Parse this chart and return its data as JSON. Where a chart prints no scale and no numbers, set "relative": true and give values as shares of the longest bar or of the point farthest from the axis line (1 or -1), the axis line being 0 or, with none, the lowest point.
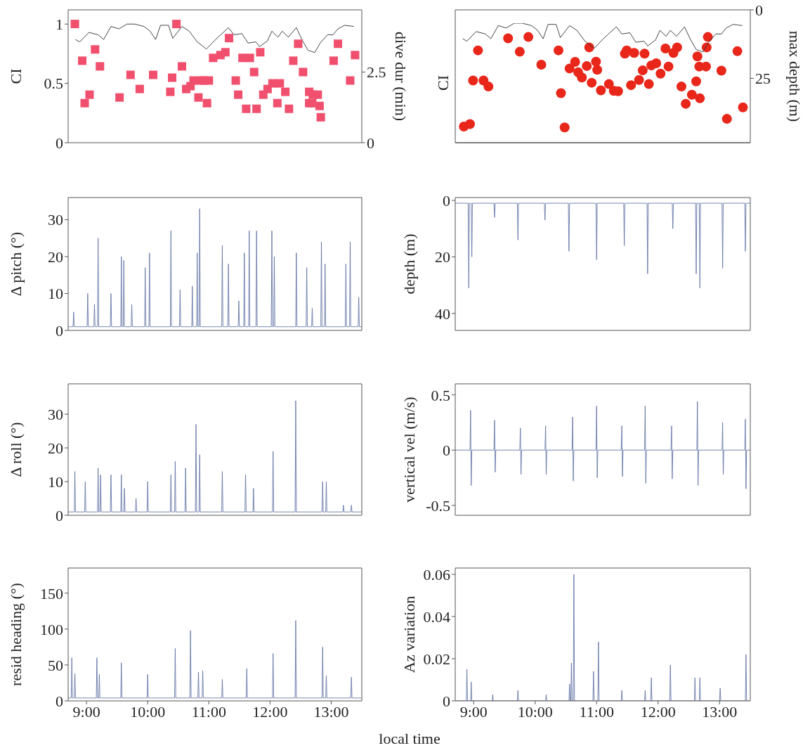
{
  "chart_data": [
    {
      "type": "scatter",
      "ylabel": "CI",
      "y2label": "dive dur (min)",
      "xlim": [
        8.7,
        13.5
      ],
      "xticks": [
        {
          "value": 10,
          "label": null
        },
        {
          "value": 12,
          "label": null
        }
      ],
      "ylim": [
        0,
        1.12
      ],
      "yticks": [
        0,
        0.5,
        1
      ],
      "y2lim": [
        0,
        4.7
      ],
      "y2ticks": [
        0,
        2.5
      ],
      "tick_labels": "y",
      "series": [
        {
          "type": "line",
          "color": "#303030",
          "x": [
            8.82,
            8.89,
            9.04,
            9.19,
            9.28,
            9.4,
            9.53,
            9.66,
            9.79,
            9.94,
            10.04,
            10.13,
            10.21,
            10.34,
            10.41,
            10.47,
            10.56,
            10.68,
            10.81,
            10.96,
            11.11,
            11.32,
            11.41,
            11.54,
            11.64,
            11.77,
            11.83,
            11.96,
            12.03,
            12.13,
            12.2,
            12.3,
            12.43,
            12.52,
            12.62,
            12.73,
            12.82,
            12.94,
            13.03,
            13.11,
            13.22,
            13.37
          ],
          "values": [
            0.87,
            0.85,
            0.93,
            0.91,
            0.87,
            0.98,
            0.96,
            1.0,
            1.0,
            0.98,
            0.94,
            0.87,
            0.99,
            0.99,
            0.88,
            0.92,
            0.98,
            0.94,
            0.85,
            0.79,
            0.87,
            0.97,
            0.91,
            0.92,
            0.84,
            0.85,
            0.81,
            0.86,
            0.94,
            0.89,
            0.94,
            0.89,
            0.97,
            0.87,
            0.78,
            0.76,
            0.84,
            0.91,
            0.91,
            0.96,
            0.99,
            0.98
          ]
        },
        {
          "type": "scatter",
          "axis": "y2",
          "marker": "square",
          "color": "#f0506e",
          "x": [
            8.81,
            8.93,
            8.97,
            9.05,
            9.14,
            9.22,
            9.54,
            9.72,
            9.87,
            10.09,
            10.37,
            10.4,
            10.47,
            10.56,
            10.63,
            10.7,
            10.75,
            10.83,
            10.87,
            10.92,
            10.97,
            11.0,
            11.07,
            11.19,
            11.27,
            11.33,
            11.44,
            11.48,
            11.55,
            11.61,
            11.67,
            11.74,
            11.78,
            11.84,
            11.89,
            11.96,
            12.04,
            12.12,
            12.16,
            12.25,
            12.31,
            12.38,
            12.46,
            12.54,
            12.64,
            12.64,
            12.69,
            12.7,
            12.78,
            12.81,
            12.83,
            13.04,
            13.11,
            13.31,
            13.39
          ],
          "values": [
            4.2,
            2.9,
            1.4,
            1.7,
            3.3,
            2.7,
            1.6,
            2.4,
            1.9,
            2.4,
            1.8,
            2.3,
            4.2,
            2.7,
            1.9,
            2.0,
            2.2,
            1.6,
            2.2,
            2.2,
            1.4,
            2.2,
            3.0,
            3.1,
            3.2,
            3.7,
            2.2,
            1.7,
            3.0,
            1.2,
            3.0,
            2.5,
            1.2,
            3.2,
            1.7,
            1.9,
            2.1,
            1.4,
            2.1,
            1.8,
            1.2,
            2.9,
            3.5,
            2.5,
            1.8,
            1.4,
            1.4,
            1.7,
            1.7,
            1.3,
            0.9,
            2.9,
            3.5,
            2.2,
            3.1
          ]
        }
      ]
    },
    {
      "type": "scatter",
      "y2label": "max depth (m)",
      "xlim": [
        8.7,
        13.5
      ],
      "xticks": [
        {
          "value": 9,
          "label": null
        },
        {
          "value": 11,
          "label": null
        },
        {
          "value": 13,
          "label": null
        }
      ],
      "y2lim": [
        48.5,
        0
      ],
      "y2ticks": [
        0,
        25
      ],
      "tick_labels": "y",
      "series": [
        {
          "type": "scatter",
          "axis": "y2",
          "marker": "circle",
          "color": "#e8261a",
          "x": [
            8.84,
            8.94,
            8.99,
            9.07,
            9.16,
            9.24,
            9.56,
            9.75,
            9.89,
            10.1,
            10.38,
            10.42,
            10.48,
            10.56,
            10.65,
            10.7,
            10.76,
            10.84,
            10.88,
            10.92,
            10.99,
            11.01,
            11.07,
            11.2,
            11.28,
            11.35,
            11.46,
            11.49,
            11.56,
            11.61,
            11.69,
            11.75,
            11.78,
            11.85,
            11.89,
            11.97,
            12.04,
            12.12,
            12.17,
            12.25,
            12.31,
            12.38,
            12.45,
            12.55,
            12.62,
            12.64,
            12.67,
            12.68,
            12.78,
            12.79,
            12.81,
            13.03,
            13.12,
            13.29,
            13.38
          ],
          "values": [
            42.6,
            41.7,
            25.8,
            14.8,
            25.8,
            28.0,
            10.4,
            15.3,
            9.9,
            20.0,
            14.8,
            30.4,
            42.9,
            21.4,
            19.0,
            22.8,
            24.7,
            20.5,
            13.7,
            26.6,
            18.9,
            21.9,
            29.4,
            27.1,
            29.6,
            29.7,
            16.0,
            14.8,
            27.5,
            15.7,
            25.6,
            22.1,
            16.0,
            27.1,
            20.3,
            19.5,
            23.3,
            14.1,
            20.7,
            15.7,
            13.7,
            28.0,
            34.3,
            31.0,
            26.1,
            17.0,
            20.7,
            32.3,
            20.7,
            13.7,
            9.9,
            22.2,
            39.8,
            15.1,
            35.6
          ]
        }
      ]
    },
    {
      "type": "line",
      "relative": true,
      "ylabel": "CI",
      "xlim": [
        8.7,
        13.5
      ],
      "tick_labels": false,
      "series": [
        {
          "color": "#303030",
          "x": [
            8.82,
            8.89,
            9.04,
            9.19,
            9.28,
            9.4,
            9.53,
            9.66,
            9.79,
            9.94,
            10.04,
            10.13,
            10.21,
            10.34,
            10.41,
            10.47,
            10.56,
            10.68,
            10.81,
            10.96,
            11.11,
            11.32,
            11.41,
            11.54,
            11.64,
            11.77,
            11.83,
            11.96,
            12.03,
            12.13,
            12.2,
            12.3,
            12.43,
            12.52,
            12.62,
            12.73,
            12.82,
            12.94,
            13.03,
            13.11,
            13.22,
            13.37
          ],
          "values": [
            0.87,
            0.85,
            0.93,
            0.91,
            0.87,
            0.98,
            0.96,
            1.0,
            1.0,
            0.98,
            0.94,
            0.87,
            0.99,
            0.99,
            0.88,
            0.92,
            0.98,
            0.94,
            0.85,
            0.79,
            0.87,
            0.97,
            0.91,
            0.92,
            0.84,
            0.85,
            0.81,
            0.86,
            0.94,
            0.89,
            0.94,
            0.89,
            0.97,
            0.87,
            0.78,
            0.76,
            0.84,
            0.91,
            0.91,
            0.96,
            0.99,
            0.98
          ]
        }
      ]
    },
    {
      "type": "line",
      "ylabel": "Δ pitch (°)",
      "xlim": [
        8.7,
        13.5
      ],
      "xticks": [
        {
          "value": 10,
          "label": null
        },
        {
          "value": 12,
          "label": null
        }
      ],
      "ylim": [
        0,
        36
      ],
      "yticks": [
        0,
        10,
        20,
        30
      ],
      "tick_labels": "y",
      "series": [
        {
          "color": "#6878a8",
          "x": [
            8.7,
            8.78,
            8.79,
            8.8,
            9.01,
            9.02,
            9.03,
            9.12,
            9.13,
            9.14,
            9.18,
            9.19,
            9.2,
            9.39,
            9.4,
            9.41,
            9.56,
            9.57,
            9.58,
            9.6,
            9.61,
            9.62,
            9.73,
            9.74,
            9.75,
            9.95,
            9.96,
            9.97,
            10.02,
            10.03,
            10.04,
            10.37,
            10.38,
            10.39,
            10.52,
            10.53,
            10.54,
            10.72,
            10.73,
            10.74,
            10.8,
            10.81,
            10.82,
            10.84,
            10.85,
            10.86,
            11.21,
            11.22,
            11.23,
            11.31,
            11.32,
            11.33,
            11.48,
            11.49,
            11.5,
            11.57,
            11.58,
            11.59,
            11.65,
            11.66,
            11.67,
            11.77,
            11.78,
            11.79,
            12.02,
            12.03,
            12.04,
            12.06,
            12.07,
            12.08,
            12.42,
            12.43,
            12.44,
            12.59,
            12.6,
            12.61,
            12.68,
            12.69,
            12.7,
            12.83,
            12.84,
            12.85,
            12.89,
            12.9,
            12.91,
            13.23,
            13.24,
            13.25,
            13.3,
            13.31,
            13.32,
            13.44,
            13.45,
            13.46,
            13.5
          ],
          "values": [
            1,
            1,
            5,
            1,
            1,
            10,
            1,
            1,
            7,
            1,
            1,
            25,
            1,
            1,
            10,
            1,
            1,
            20,
            1,
            1,
            19,
            1,
            1,
            7,
            1,
            1,
            17,
            1,
            1,
            21,
            1,
            1,
            27,
            1,
            1,
            11,
            1,
            1,
            12,
            1,
            1,
            21,
            1,
            1,
            33,
            1,
            1,
            23,
            1,
            1,
            18,
            1,
            1,
            8,
            1,
            1,
            21,
            1,
            1,
            27,
            1,
            1,
            27,
            1,
            1,
            27,
            1,
            1,
            20,
            1,
            1,
            21,
            1,
            1,
            17,
            1,
            1,
            6,
            1,
            1,
            24,
            1,
            1,
            18,
            1,
            1,
            18,
            1,
            1,
            24,
            1,
            1,
            9,
            1,
            1
          ]
        }
      ]
    },
    {
      "type": "line",
      "ylabel": "depth (m)",
      "xlim": [
        8.7,
        13.5
      ],
      "xticks": [
        {
          "value": 9,
          "label": null
        },
        {
          "value": 11,
          "label": null
        },
        {
          "value": 13,
          "label": null
        }
      ],
      "ylim": [
        46,
        -1
      ],
      "yticks": [
        0,
        20,
        40
      ],
      "tick_labels": "y",
      "series": [
        {
          "color": "#6878a8",
          "x": [
            8.7,
            8.91,
            8.92,
            8.93,
            8.96,
            8.97,
            8.98,
            9.33,
            9.34,
            9.35,
            9.71,
            9.72,
            9.73,
            10.15,
            10.16,
            10.17,
            10.54,
            10.55,
            10.56,
            10.99,
            11.0,
            11.01,
            11.44,
            11.45,
            11.46,
            11.82,
            11.83,
            11.84,
            12.23,
            12.24,
            12.25,
            12.61,
            12.62,
            12.63,
            12.67,
            12.68,
            12.69,
            13.04,
            13.05,
            13.06,
            13.41,
            13.42,
            13.43,
            13.5
          ],
          "values": [
            1,
            1,
            31,
            1,
            1,
            20,
            1,
            1,
            6,
            1,
            1,
            14,
            1,
            1,
            7,
            1,
            1,
            18,
            1,
            1,
            21,
            1,
            1,
            16,
            1,
            1,
            26,
            1,
            1,
            10,
            1,
            1,
            26,
            1,
            1,
            31,
            1,
            1,
            24,
            1,
            1,
            18,
            1,
            1
          ]
        }
      ]
    },
    {
      "type": "line",
      "ylabel": "Δ roll (°)",
      "xlim": [
        8.7,
        13.5
      ],
      "xticks": [
        {
          "value": 10,
          "label": null
        },
        {
          "value": 12,
          "label": null
        }
      ],
      "ylim": [
        0,
        39
      ],
      "yticks": [
        0,
        10,
        20,
        30
      ],
      "tick_labels": "y",
      "series": [
        {
          "color": "#6878a8",
          "x": [
            8.7,
            8.8,
            8.81,
            8.82,
            8.97,
            8.98,
            8.99,
            9.18,
            9.19,
            9.2,
            9.22,
            9.23,
            9.24,
            9.39,
            9.4,
            9.41,
            9.56,
            9.57,
            9.58,
            9.61,
            9.62,
            9.63,
            9.8,
            9.81,
            9.82,
            9.99,
            10.0,
            10.01,
            10.37,
            10.38,
            10.39,
            10.44,
            10.45,
            10.46,
            10.61,
            10.62,
            10.63,
            10.78,
            10.79,
            10.8,
            10.84,
            10.85,
            10.86,
            11.21,
            11.22,
            11.23,
            11.59,
            11.6,
            11.61,
            11.72,
            11.73,
            11.74,
            12.04,
            12.05,
            12.06,
            12.41,
            12.42,
            12.43,
            12.85,
            12.86,
            12.87,
            12.91,
            12.92,
            12.93,
            13.19,
            13.2,
            13.21,
            13.32,
            13.33,
            13.34,
            13.5
          ],
          "values": [
            1,
            1,
            13,
            1,
            1,
            10,
            1,
            1,
            14,
            1,
            1,
            12,
            1,
            1,
            12,
            1,
            1,
            12,
            1,
            1,
            8,
            1,
            1,
            5,
            1,
            1,
            10,
            1,
            1,
            12,
            1,
            1,
            16,
            1,
            1,
            14,
            1,
            1,
            27,
            1,
            1,
            18,
            1,
            1,
            13,
            1,
            1,
            12,
            1,
            1,
            8,
            1,
            1,
            19,
            1,
            1,
            34,
            1,
            1,
            10,
            1,
            1,
            10,
            1,
            1,
            3,
            1,
            1,
            3,
            1,
            1
          ]
        }
      ]
    },
    {
      "type": "line",
      "ylabel": "vertical vel (m/s)",
      "xlim": [
        8.7,
        13.5
      ],
      "xticks": [
        {
          "value": 9,
          "label": null
        },
        {
          "value": 11,
          "label": null
        },
        {
          "value": 13,
          "label": null
        }
      ],
      "ylim": [
        -0.59,
        0.6
      ],
      "yticks": [
        -0.5,
        0,
        0.5
      ],
      "tick_labels": "y",
      "series": [
        {
          "color": "#6878a8",
          "x": [
            8.7,
            8.94,
            8.95,
            8.96,
            8.97,
            9.33,
            9.34,
            9.35,
            9.36,
            9.75,
            9.76,
            9.77,
            9.78,
            10.16,
            10.17,
            10.18,
            10.19,
            10.6,
            10.61,
            10.62,
            10.63,
            10.99,
            11.0,
            11.01,
            11.02,
            11.4,
            11.41,
            11.42,
            11.43,
            11.78,
            11.79,
            11.8,
            11.81,
            12.21,
            12.22,
            12.23,
            12.24,
            12.63,
            12.64,
            12.65,
            12.66,
            13.04,
            13.05,
            13.06,
            13.07,
            13.41,
            13.42,
            13.43,
            13.44,
            13.5
          ],
          "values": [
            0,
            0,
            0.36,
            -0.32,
            0,
            0,
            0.27,
            -0.2,
            0,
            0,
            0.2,
            -0.22,
            0,
            0,
            0.22,
            -0.22,
            0,
            0,
            0.3,
            -0.28,
            0,
            0,
            0.4,
            -0.25,
            0,
            0,
            0.22,
            -0.24,
            0,
            0,
            0.4,
            -0.3,
            0,
            0,
            0.22,
            -0.26,
            0,
            0,
            0.44,
            -0.32,
            0,
            0,
            0.25,
            -0.22,
            0,
            0,
            0.28,
            -0.35,
            0,
            0
          ]
        }
      ]
    },
    {
      "type": "line",
      "ylabel": "resid heading (°)",
      "xlabel": "local time",
      "xlim": [
        8.7,
        13.5
      ],
      "xticks": [
        {
          "value": 9,
          "label": "9:00"
        },
        {
          "value": 10,
          "label": "10:00"
        },
        {
          "value": 11,
          "label": "11:00"
        },
        {
          "value": 12,
          "label": "12:00"
        },
        {
          "value": 13,
          "label": "13:00"
        }
      ],
      "ylim": [
        0,
        185
      ],
      "yticks": [
        0,
        50,
        100,
        150
      ],
      "series": [
        {
          "color": "#6878a8",
          "x": [
            8.7,
            8.75,
            8.76,
            8.77,
            8.8,
            8.81,
            8.82,
            9.16,
            9.17,
            9.18,
            9.2,
            9.21,
            9.22,
            9.56,
            9.57,
            9.58,
            9.99,
            10.0,
            10.01,
            10.44,
            10.45,
            10.46,
            10.69,
            10.7,
            10.71,
            10.82,
            10.83,
            10.84,
            10.89,
            10.9,
            10.91,
            11.21,
            11.22,
            11.23,
            11.61,
            11.62,
            11.63,
            12.04,
            12.05,
            12.06,
            12.41,
            12.42,
            12.43,
            12.85,
            12.86,
            12.87,
            12.91,
            12.92,
            12.93,
            13.32,
            13.33,
            13.34,
            13.5
          ],
          "values": [
            4,
            4,
            60,
            4,
            4,
            38,
            4,
            4,
            60,
            4,
            4,
            37,
            4,
            4,
            53,
            4,
            4,
            37,
            4,
            4,
            73,
            4,
            4,
            98,
            4,
            4,
            40,
            4,
            4,
            42,
            4,
            4,
            30,
            4,
            4,
            45,
            4,
            4,
            66,
            4,
            4,
            112,
            4,
            4,
            75,
            4,
            4,
            35,
            4,
            4,
            33,
            4,
            4
          ]
        }
      ]
    },
    {
      "type": "line",
      "ylabel": "Az variation",
      "xlim": [
        8.7,
        13.5
      ],
      "xticks": [
        {
          "value": 9,
          "label": "9:00"
        },
        {
          "value": 10,
          "label": "10:00"
        },
        {
          "value": 11,
          "label": "11:00"
        },
        {
          "value": 12,
          "label": "12:00"
        },
        {
          "value": 13,
          "label": "13:00"
        }
      ],
      "ylim": [
        0,
        0.063
      ],
      "yticks": [
        0,
        0.02,
        0.04,
        0.06
      ],
      "series": [
        {
          "color": "#6878a8",
          "x": [
            8.7,
            8.88,
            8.89,
            8.9,
            8.95,
            8.96,
            8.97,
            9.3,
            9.31,
            9.32,
            9.71,
            9.72,
            9.73,
            10.17,
            10.18,
            10.19,
            10.55,
            10.56,
            10.57,
            10.58,
            10.59,
            10.6,
            10.62,
            10.63,
            10.64,
            10.94,
            10.95,
            10.96,
            11.02,
            11.03,
            11.04,
            11.4,
            11.41,
            11.42,
            11.78,
            11.79,
            11.8,
            11.88,
            11.89,
            11.9,
            12.19,
            12.2,
            12.21,
            12.59,
            12.6,
            12.61,
            12.67,
            12.68,
            12.69,
            13.0,
            13.01,
            13.02,
            13.42,
            13.43,
            13.44,
            13.5
          ],
          "values": [
            0,
            0,
            0.015,
            0,
            0,
            0.009,
            0,
            0,
            0.003,
            0,
            0,
            0.005,
            0,
            0,
            0.003,
            0,
            0,
            0.008,
            0,
            0,
            0.018,
            0,
            0,
            0.06,
            0,
            0,
            0.014,
            0,
            0,
            0.028,
            0,
            0,
            0.005,
            0,
            0,
            0.005,
            0,
            0,
            0.011,
            0,
            0,
            0.017,
            0,
            0,
            0.011,
            0,
            0,
            0.011,
            0,
            0,
            0.006,
            0,
            0,
            0.022,
            0,
            0
          ]
        }
      ]
    }
  ]
}
